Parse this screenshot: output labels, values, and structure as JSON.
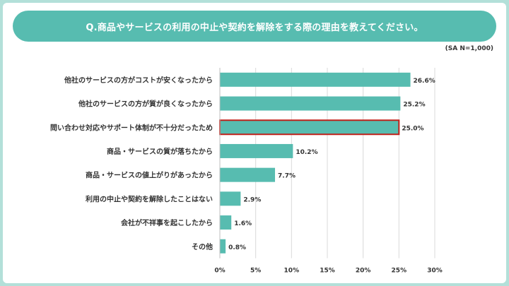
{
  "title": "Q.商品やサービスの利用の中止や契約を解除をする際の理由を教えてください。",
  "sample_note": "(SA N=1,000)",
  "colors": {
    "bar": "#57bcb0",
    "highlight_border": "#c0201a",
    "grid": "#d9d9d9",
    "frame": "#b3e0d9"
  },
  "chart_data": {
    "type": "bar",
    "orientation": "horizontal",
    "title": "Q.商品やサービスの利用の中止や契約を解除をする際の理由を教えてください。",
    "xlabel": "",
    "ylabel": "",
    "xlim": [
      0,
      30
    ],
    "unit": "%",
    "categories": [
      "他社のサービスの方がコストが安くなったから",
      "他社のサービスの方が質が良くなったから",
      "問い合わせ対応やサポート体制が不十分だったため",
      "商品・サービスの質が落ちたから",
      "商品・サービスの値上がりがあったから",
      "利用の中止や契約を解除したことはない",
      "会社が不祥事を起こしたから",
      "その他"
    ],
    "values": [
      26.6,
      25.2,
      25.0,
      10.2,
      7.7,
      2.9,
      1.6,
      0.8
    ],
    "value_labels": [
      "26.6%",
      "25.2%",
      "25.0%",
      "10.2%",
      "7.7%",
      "2.9%",
      "1.6%",
      "0.8%"
    ],
    "highlighted_index": 2,
    "ticks": [
      0,
      5,
      10,
      15,
      20,
      25,
      30
    ],
    "tick_labels": [
      "0%",
      "5%",
      "10%",
      "15%",
      "20%",
      "25%",
      "30%"
    ]
  }
}
